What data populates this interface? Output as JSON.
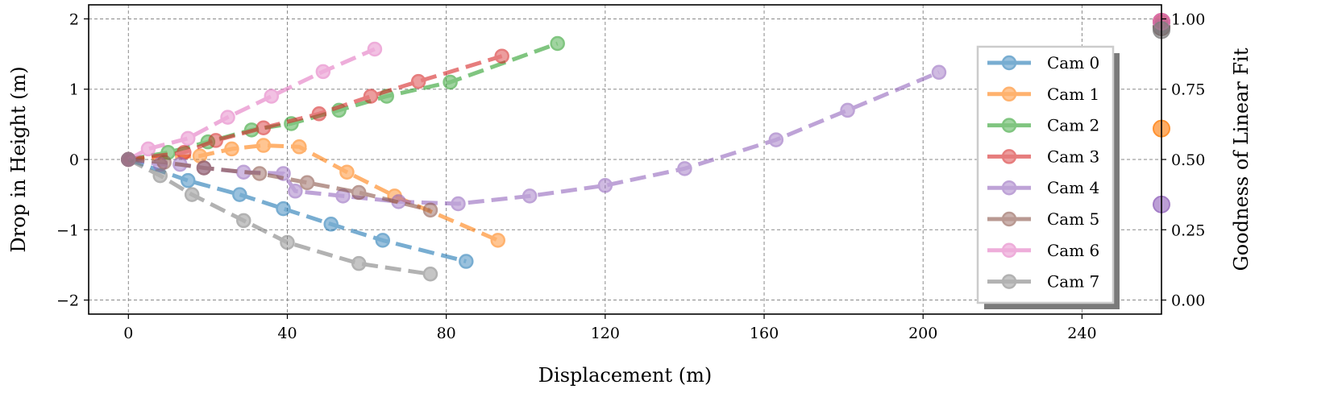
{
  "chart_data": {
    "type": "line",
    "xlabel": "Displacement (m)",
    "ylabel": "Drop in Height (m)",
    "y2label": "Goodness of Linear Fit",
    "xlim": [
      -10,
      260
    ],
    "ylim": [
      -2.2,
      2.2
    ],
    "y2lim": [
      -0.05,
      1.05
    ],
    "xticks": [
      0,
      40,
      80,
      120,
      160,
      200,
      240
    ],
    "xtick_labels": [
      "0",
      "40",
      "80",
      "120",
      "160",
      "200",
      "240"
    ],
    "yticks": [
      -2,
      -1,
      0,
      1,
      2
    ],
    "ytick_labels": [
      "−2",
      "−1",
      "0",
      "1",
      "2"
    ],
    "y2ticks": [
      0.0,
      0.25,
      0.5,
      0.75,
      1.0
    ],
    "y2tick_labels": [
      "0.00",
      "0.25",
      "0.50",
      "0.75",
      "1.00"
    ],
    "grid": true,
    "legend_position": "right",
    "series": [
      {
        "name": "Cam 0",
        "color": "#1f77b4",
        "x": [
          0,
          15,
          28,
          39,
          51,
          64,
          85
        ],
        "y": [
          0,
          -0.3,
          -0.5,
          -0.7,
          -0.92,
          -1.15,
          -1.45
        ],
        "fit": 0.97
      },
      {
        "name": "Cam 1",
        "color": "#ff7f0e",
        "x": [
          0,
          18,
          26,
          34,
          43,
          55,
          67,
          93
        ],
        "y": [
          0,
          0.05,
          0.15,
          0.2,
          0.18,
          -0.18,
          -0.52,
          -1.15
        ],
        "fit": 0.61
      },
      {
        "name": "Cam 2",
        "color": "#2ca02c",
        "x": [
          0,
          10,
          20,
          31,
          41,
          53,
          65,
          81,
          108
        ],
        "y": [
          0,
          0.1,
          0.25,
          0.42,
          0.51,
          0.7,
          0.9,
          1.1,
          1.65
        ],
        "fit": 0.99
      },
      {
        "name": "Cam 3",
        "color": "#d62728",
        "x": [
          0,
          14,
          22,
          34,
          48,
          61,
          73,
          94
        ],
        "y": [
          0,
          0.1,
          0.27,
          0.45,
          0.65,
          0.9,
          1.11,
          1.47
        ],
        "fit": 0.99
      },
      {
        "name": "Cam 4",
        "color": "#9467bd",
        "x": [
          0,
          8,
          13,
          19,
          29,
          39,
          42,
          54,
          68,
          83,
          101,
          120,
          140,
          163,
          181,
          204
        ],
        "y": [
          0,
          -0.07,
          -0.07,
          -0.12,
          -0.18,
          -0.2,
          -0.45,
          -0.52,
          -0.6,
          -0.63,
          -0.52,
          -0.37,
          -0.13,
          0.28,
          0.7,
          1.24
        ],
        "fit": 0.34
      },
      {
        "name": "Cam 5",
        "color": "#8c564b",
        "x": [
          0,
          9,
          19,
          33,
          45,
          58,
          76
        ],
        "y": [
          0,
          -0.04,
          -0.12,
          -0.2,
          -0.33,
          -0.47,
          -0.72
        ],
        "fit": 0.97
      },
      {
        "name": "Cam 6",
        "color": "#e377c2",
        "x": [
          0,
          5,
          15,
          25,
          36,
          49,
          62
        ],
        "y": [
          0,
          0.15,
          0.3,
          0.6,
          0.9,
          1.25,
          1.57
        ],
        "fit": 0.99
      },
      {
        "name": "Cam 7",
        "color": "#7f7f7f",
        "x": [
          0,
          8,
          16,
          29,
          40,
          58,
          76
        ],
        "y": [
          0,
          -0.23,
          -0.5,
          -0.87,
          -1.18,
          -1.48,
          -1.63
        ],
        "fit": 0.96
      }
    ]
  }
}
